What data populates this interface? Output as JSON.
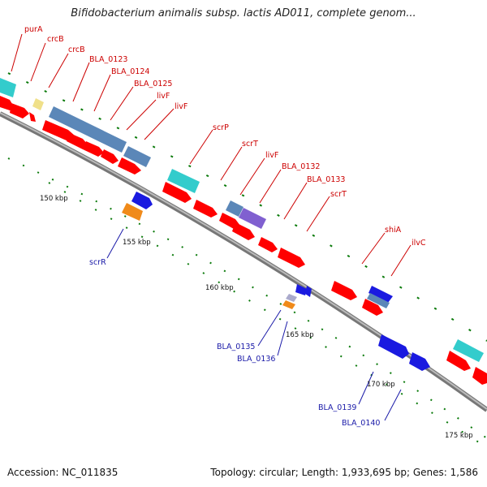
{
  "header": {
    "title": "Bifidobacterium animalis subsp. lactis AD011, complete genom..."
  },
  "footer": {
    "accession": "Accession: NC_011835",
    "summary": "Topology: circular; Length: 1,933,695 bp; Genes: 1,586"
  },
  "colors": {
    "label_top": "#cc0000",
    "label_bottom": "#1a1aa8",
    "cds": "#ff0000",
    "backbone": "#888888",
    "tick": "#0a7a0a"
  },
  "ticks": [
    "150 kbp",
    "155 kbp",
    "160 kbp",
    "165 kbp",
    "170 kbp",
    "175 kbp"
  ],
  "genes_forward": [
    "purA",
    "crcB",
    "crcB",
    "BLA_0123",
    "BLA_0124",
    "BLA_0125",
    "livF",
    "livF",
    "scrP",
    "scrT",
    "livF",
    "BLA_0132",
    "BLA_0133",
    "scrT",
    "shiA",
    "ilvC"
  ],
  "genes_reverse": [
    "scrR",
    "BLA_0135",
    "BLA_0136",
    "BLA_0139",
    "BLA_0140"
  ]
}
